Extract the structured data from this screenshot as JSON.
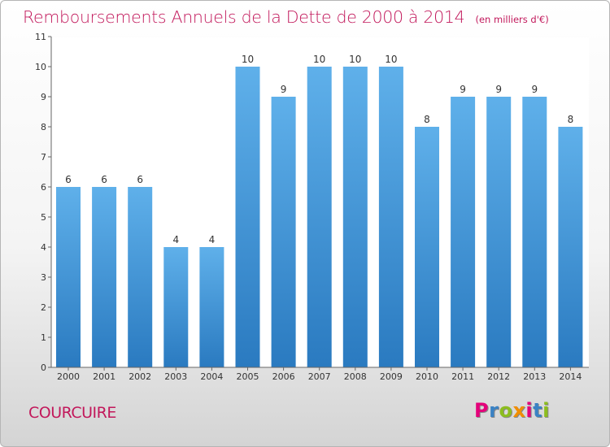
{
  "chart_title": "Remboursements Annuels de la Dette de 2000 à 2014",
  "chart_subtitle": "(en milliers d'€)",
  "location": "COURCUIRE",
  "logo_text": "Proxiti",
  "colors": {
    "title": "#c2185b",
    "bar_light": "#5fb0ea",
    "bar_dark": "#2a7ac0",
    "logo": [
      "#e4007a",
      "#3a82c4",
      "#8cbd1f",
      "#f18e00",
      "#e4007a",
      "#3a82c4",
      "#8cbd1f"
    ]
  },
  "chart_data": {
    "type": "bar",
    "categories": [
      "2000",
      "2001",
      "2002",
      "2003",
      "2004",
      "2005",
      "2006",
      "2007",
      "2008",
      "2009",
      "2010",
      "2011",
      "2012",
      "2013",
      "2014"
    ],
    "values": [
      6,
      6,
      6,
      4,
      4,
      10,
      9,
      10,
      10,
      10,
      8,
      9,
      9,
      9,
      8
    ],
    "title": "Remboursements Annuels de la Dette de 2000 à 2014",
    "subtitle": "(en milliers d'€)",
    "xlabel": "",
    "ylabel": "",
    "ylim": [
      0,
      11
    ],
    "yticks": [
      "0",
      "1",
      "2",
      "3",
      "4",
      "5",
      "6",
      "7",
      "8",
      "9",
      "10",
      "11"
    ],
    "grid": false,
    "data_labels": true
  }
}
